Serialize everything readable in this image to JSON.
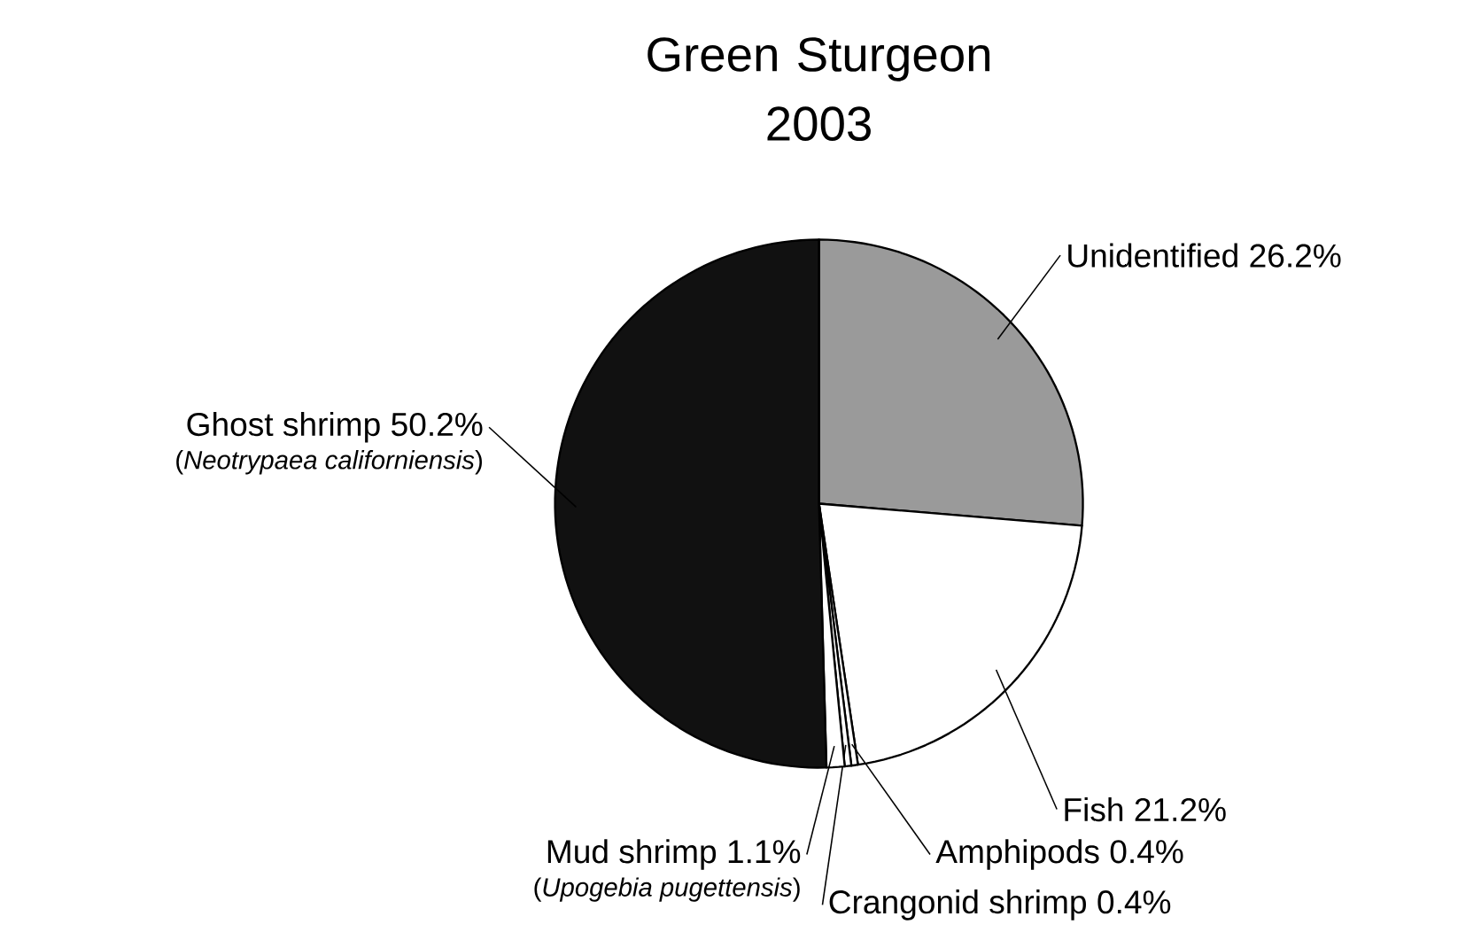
{
  "chart_data": {
    "type": "pie",
    "title": "Green Sturgeon\n2003",
    "categories": [
      "Unidentified",
      "Fish",
      "Amphipods",
      "Crangonid shrimp",
      "Mud shrimp",
      "Ghost shrimp"
    ],
    "values": [
      26.2,
      21.2,
      0.4,
      0.4,
      1.1,
      50.2
    ],
    "value_labels": [
      "26.2%",
      "21.2%",
      "0.4%",
      "0.4%",
      "1.1%",
      "50.2%"
    ],
    "colors": [
      "#9a9a9a",
      "#ffffff",
      "#ffffff",
      "#ffffff",
      "#ffffff",
      "#111111"
    ],
    "annotations": [
      "(*Neotrypaea californiensis*)",
      "(*Upogebia pugettensis*)"
    ]
  }
}
